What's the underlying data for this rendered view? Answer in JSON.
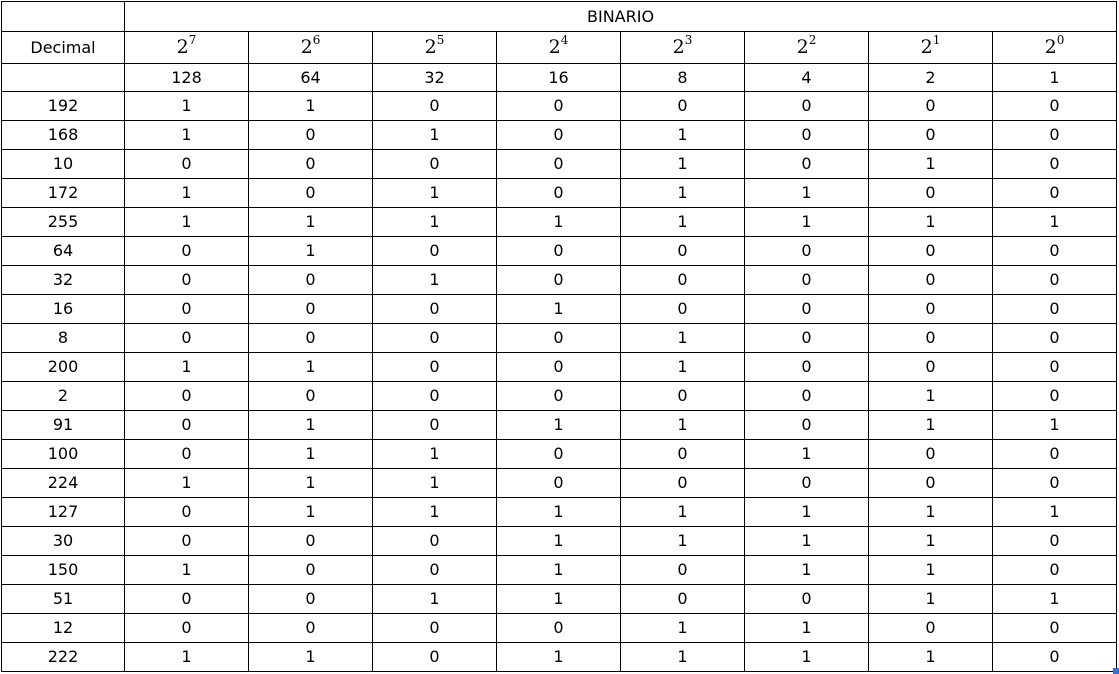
{
  "title": "BINARIO",
  "decimal_header": "Decimal",
  "powers": [
    {
      "base": "2",
      "exp": "7"
    },
    {
      "base": "2",
      "exp": "6"
    },
    {
      "base": "2",
      "exp": "5"
    },
    {
      "base": "2",
      "exp": "4"
    },
    {
      "base": "2",
      "exp": "3"
    },
    {
      "base": "2",
      "exp": "2"
    },
    {
      "base": "2",
      "exp": "1"
    },
    {
      "base": "2",
      "exp": "0"
    }
  ],
  "weights": [
    "128",
    "64",
    "32",
    "16",
    "8",
    "4",
    "2",
    "1"
  ],
  "rows": [
    {
      "decimal": "192",
      "bits": [
        "1",
        "1",
        "0",
        "0",
        "0",
        "0",
        "0",
        "0"
      ]
    },
    {
      "decimal": "168",
      "bits": [
        "1",
        "0",
        "1",
        "0",
        "1",
        "0",
        "0",
        "0"
      ]
    },
    {
      "decimal": "10",
      "bits": [
        "0",
        "0",
        "0",
        "0",
        "1",
        "0",
        "1",
        "0"
      ]
    },
    {
      "decimal": "172",
      "bits": [
        "1",
        "0",
        "1",
        "0",
        "1",
        "1",
        "0",
        "0"
      ]
    },
    {
      "decimal": "255",
      "bits": [
        "1",
        "1",
        "1",
        "1",
        "1",
        "1",
        "1",
        "1"
      ]
    },
    {
      "decimal": "64",
      "bits": [
        "0",
        "1",
        "0",
        "0",
        "0",
        "0",
        "0",
        "0"
      ]
    },
    {
      "decimal": "32",
      "bits": [
        "0",
        "0",
        "1",
        "0",
        "0",
        "0",
        "0",
        "0"
      ]
    },
    {
      "decimal": "16",
      "bits": [
        "0",
        "0",
        "0",
        "1",
        "0",
        "0",
        "0",
        "0"
      ]
    },
    {
      "decimal": "8",
      "bits": [
        "0",
        "0",
        "0",
        "0",
        "1",
        "0",
        "0",
        "0"
      ]
    },
    {
      "decimal": "200",
      "bits": [
        "1",
        "1",
        "0",
        "0",
        "1",
        "0",
        "0",
        "0"
      ]
    },
    {
      "decimal": "2",
      "bits": [
        "0",
        "0",
        "0",
        "0",
        "0",
        "0",
        "1",
        "0"
      ]
    },
    {
      "decimal": "91",
      "bits": [
        "0",
        "1",
        "0",
        "1",
        "1",
        "0",
        "1",
        "1"
      ]
    },
    {
      "decimal": "100",
      "bits": [
        "0",
        "1",
        "1",
        "0",
        "0",
        "1",
        "0",
        "0"
      ]
    },
    {
      "decimal": "224",
      "bits": [
        "1",
        "1",
        "1",
        "0",
        "0",
        "0",
        "0",
        "0"
      ]
    },
    {
      "decimal": "127",
      "bits": [
        "0",
        "1",
        "1",
        "1",
        "1",
        "1",
        "1",
        "1"
      ]
    },
    {
      "decimal": "30",
      "bits": [
        "0",
        "0",
        "0",
        "1",
        "1",
        "1",
        "1",
        "0"
      ]
    },
    {
      "decimal": "150",
      "bits": [
        "1",
        "0",
        "0",
        "1",
        "0",
        "1",
        "1",
        "0"
      ]
    },
    {
      "decimal": "51",
      "bits": [
        "0",
        "0",
        "1",
        "1",
        "0",
        "0",
        "1",
        "1"
      ]
    },
    {
      "decimal": "12",
      "bits": [
        "0",
        "0",
        "0",
        "0",
        "1",
        "1",
        "0",
        "0"
      ]
    },
    {
      "decimal": "222",
      "bits": [
        "1",
        "1",
        "0",
        "1",
        "1",
        "1",
        "1",
        "0"
      ]
    }
  ],
  "colors": {
    "grid": "#000000",
    "background": "#ffffff",
    "corner_accent": "#3a6ec9"
  }
}
